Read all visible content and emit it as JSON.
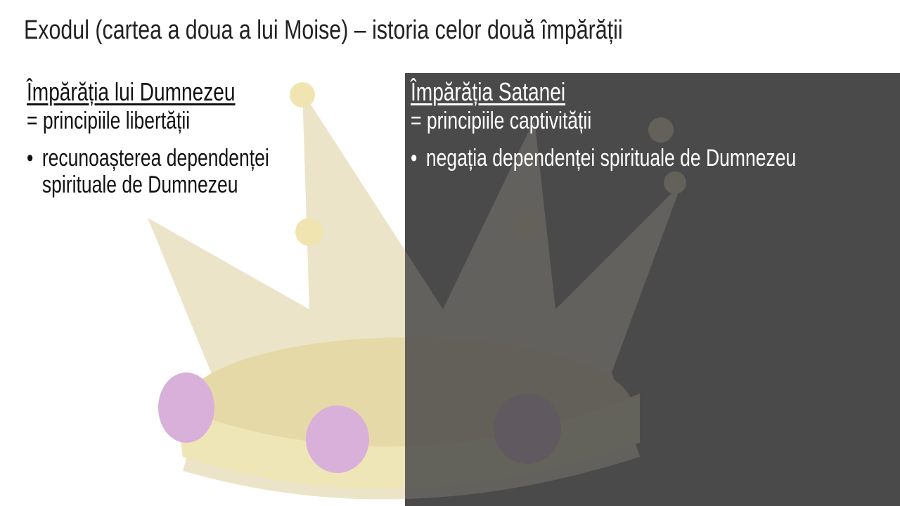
{
  "title": "Exodul (cartea a doua a lui Moise) – istoria celor două împărății",
  "left": {
    "heading": "Împărăția lui Dumnezeu",
    "subtitle": "= principiile libertății",
    "bullets": [
      "recunoașterea dependenței",
      "spirituale de Dumnezeu"
    ]
  },
  "right": {
    "heading": "Împărăția Satanei",
    "subtitle": "= principiile captivității",
    "bullets": [
      "negația dependenței spirituale de Dumnezeu"
    ]
  },
  "colors": {
    "dark_panel": "#4a4a4a",
    "crown_gold": "#e8dcb0",
    "jewel": "#d8a8d8"
  }
}
